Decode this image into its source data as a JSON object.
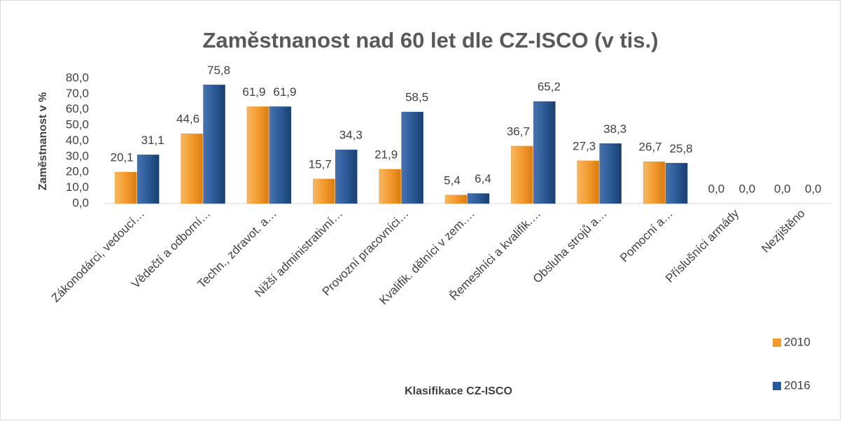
{
  "chart_data": {
    "type": "bar",
    "title": "Zaměstnanost nad 60 let dle CZ-ISCO (v tis.)",
    "x_label": "Klasifikace CZ-ISCO",
    "y_label": "Zaměstnanost v %",
    "categories": [
      "Zákonodárci, vedoucí…",
      "Vědečtí a odborní…",
      "Techn., zdravot. a…",
      "Nižší administrativní…",
      "Provozní pracovníci…",
      "Kvalifik. dělníci v zem.…",
      "Řemeslníci a kvalifik.…",
      "Obsluha strojů a…",
      "Pomocní a…",
      "Příslušníci armády",
      "Nezjištěno"
    ],
    "series": [
      {
        "name": "2010",
        "color": "#f39a2e",
        "values": [
          20.1,
          44.6,
          61.9,
          15.7,
          21.9,
          5.4,
          36.7,
          27.3,
          26.7,
          0,
          0
        ],
        "value_labels": [
          "20,1",
          "44,6",
          "61,9",
          "15,7",
          "21,9",
          "5,4",
          "36,7",
          "27,3",
          "26,7",
          "0,0",
          "0,0"
        ]
      },
      {
        "name": "2016",
        "color": "#2b5b97",
        "values": [
          31.1,
          75.8,
          61.9,
          34.3,
          58.5,
          6.4,
          65.2,
          38.3,
          25.8,
          0,
          0
        ],
        "value_labels": [
          "31,1",
          "75,8",
          "61,9",
          "34,3",
          "58,5",
          "6,4",
          "65,2",
          "38,3",
          "25,8",
          "0,0",
          "0,0"
        ]
      }
    ],
    "ylim": [
      0,
      80
    ],
    "yticks": [
      {
        "value": 0,
        "label": "0,0"
      },
      {
        "value": 10,
        "label": "10,0"
      },
      {
        "value": 20,
        "label": "20,0"
      },
      {
        "value": 30,
        "label": "30,0"
      },
      {
        "value": 40,
        "label": "40,0"
      },
      {
        "value": 50,
        "label": "50,0"
      },
      {
        "value": 60,
        "label": "60,0"
      },
      {
        "value": 70,
        "label": "70,0"
      },
      {
        "value": 80,
        "label": "80,0"
      }
    ],
    "legend": "right"
  }
}
